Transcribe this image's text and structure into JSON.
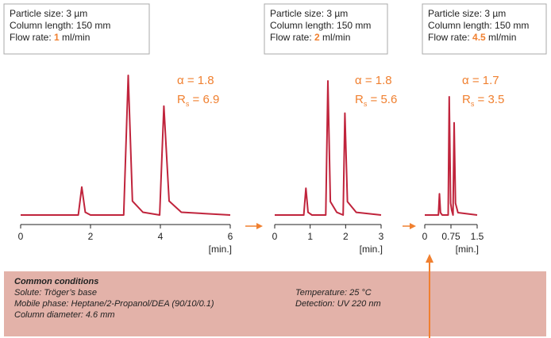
{
  "chart_data": [
    {
      "type": "line",
      "color": "#c0243c",
      "xlim": [
        0,
        6
      ],
      "xticks": [
        0,
        2,
        4,
        6
      ],
      "ylim": [
        0,
        100
      ],
      "xlabel": "[min.]",
      "x": [
        0,
        1.65,
        1.75,
        1.85,
        2.0,
        2.95,
        3.08,
        3.2,
        3.5,
        3.98,
        4.1,
        4.25,
        4.6,
        6
      ],
      "values": [
        0,
        0,
        20,
        2,
        0,
        0,
        100,
        10,
        2,
        0,
        78,
        10,
        2,
        0
      ],
      "alpha": "α = 1.8",
      "rs_symbol": "R",
      "rs_subscript": "s",
      "rs_value": " = 6.9",
      "info": {
        "lines": [
          "Particle size: 3 µm",
          "Column length: 150 mm"
        ],
        "flow_label": "Flow rate: ",
        "flow_value": "1",
        "flow_unit": " ml/min"
      }
    },
    {
      "type": "line",
      "color": "#c0243c",
      "xlim": [
        0,
        3
      ],
      "xticks": [
        0,
        1,
        2,
        3
      ],
      "ylim": [
        0,
        100
      ],
      "xlabel": "[min.]",
      "x": [
        0,
        0.82,
        0.88,
        0.94,
        1.05,
        1.44,
        1.5,
        1.57,
        1.75,
        1.93,
        1.98,
        2.05,
        2.3,
        3
      ],
      "values": [
        0,
        0,
        20,
        2,
        0,
        0,
        100,
        10,
        2,
        0,
        76,
        10,
        2,
        0
      ],
      "alpha": "α = 1.8",
      "rs_symbol": "R",
      "rs_subscript": "s",
      "rs_value": " = 5.6",
      "info": {
        "lines": [
          "Particle size: 3 µm",
          "Column length: 150 mm"
        ],
        "flow_label": "Flow rate: ",
        "flow_value": "2",
        "flow_unit": " ml/min"
      }
    },
    {
      "type": "line",
      "color": "#c0243c",
      "xlim": [
        0,
        1.5
      ],
      "xticks": [
        0,
        0.75,
        1.5
      ],
      "ylim": [
        0,
        100
      ],
      "xlabel": "[min.]",
      "x": [
        0,
        0.39,
        0.42,
        0.45,
        0.5,
        0.67,
        0.7,
        0.74,
        0.77,
        0.81,
        0.84,
        0.88,
        0.95,
        1.5
      ],
      "values": [
        0,
        0,
        18,
        2,
        0,
        0,
        100,
        10,
        4,
        0,
        78,
        10,
        2,
        0
      ],
      "alpha": "α = 1.7",
      "rs_symbol": "R",
      "rs_subscript": "s",
      "rs_value": " = 3.5",
      "info": {
        "lines": [
          "Particle size: 3 µm",
          "Column length: 150 mm"
        ],
        "flow_label": "Flow rate: ",
        "flow_value": "4.5",
        "flow_unit": " ml/min"
      }
    }
  ],
  "common_conditions": {
    "title": "Common conditions",
    "left": [
      "Solute: Tröger’s base",
      "Mobile phase: Heptane/2-Propanol/DEA (90/10/0.1)",
      "Column diameter: 4.6 mm"
    ],
    "right": [
      "Temperature: 25 °C",
      "Detection: UV 220 nm"
    ]
  }
}
